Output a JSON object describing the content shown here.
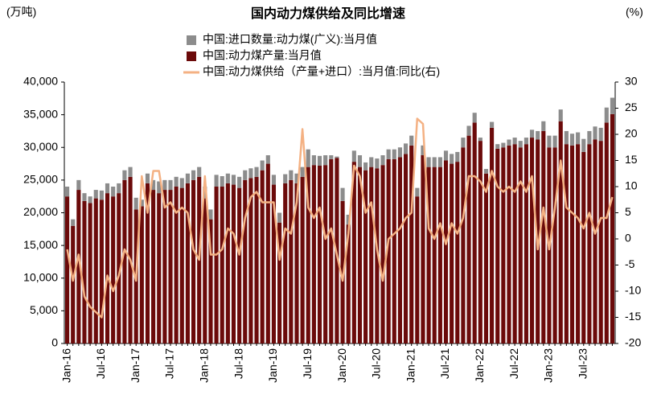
{
  "chart_data": {
    "type": "bar_line",
    "title": "国内动力煤供给及同比增速",
    "y_label": "(万吨)",
    "y2_label": "(%)",
    "categories": [
      "Jan-16",
      null,
      null,
      null,
      null,
      null,
      "Jul-16",
      null,
      null,
      null,
      null,
      null,
      "Jan-17",
      null,
      null,
      null,
      null,
      null,
      "Jul-17",
      null,
      null,
      null,
      null,
      null,
      "Jan-18",
      null,
      null,
      null,
      null,
      null,
      "Jul-18",
      null,
      null,
      null,
      null,
      null,
      "Jan-19",
      null,
      null,
      null,
      null,
      null,
      "Jul-19",
      null,
      null,
      null,
      null,
      null,
      "Jan-20",
      null,
      null,
      null,
      null,
      null,
      "Jul-20",
      null,
      null,
      null,
      null,
      null,
      "Jan-21",
      null,
      null,
      null,
      null,
      null,
      "Jul-21",
      null,
      null,
      null,
      null,
      null,
      "Jan-22",
      null,
      null,
      null,
      null,
      null,
      "Jul-22",
      null,
      null,
      null,
      null,
      null,
      "Jan-23",
      null,
      null,
      null,
      null,
      null,
      "Jul-23",
      null,
      null,
      null,
      null,
      null
    ],
    "series": [
      {
        "name": "中国:进口数量:动力煤(广义):当月值",
        "color": "#8c8c8c",
        "values": [
          1500,
          1000,
          1500,
          1200,
          1000,
          1300,
          1400,
          1500,
          1500,
          1500,
          1500,
          1500,
          1800,
          1000,
          1500,
          1500,
          1800,
          1500,
          1500,
          1500,
          1500,
          1500,
          1500,
          1500,
          1800,
          1500,
          1800,
          1600,
          1500,
          1500,
          1700,
          1500,
          1500,
          1500,
          1500,
          1300,
          1500,
          1500,
          1400,
          1500,
          1500,
          1500,
          2700,
          1500,
          1500,
          1500,
          600,
          200,
          2000,
          1500,
          1700,
          1800,
          1200,
          1500,
          1500,
          1500,
          1500,
          1500,
          1500,
          1600,
          1500,
          1300,
          1500,
          1500,
          1500,
          1500,
          1500,
          1500,
          1500,
          1500,
          1500,
          1500,
          500,
          700,
          900,
          700,
          700,
          900,
          1000,
          1000,
          1000,
          1200,
          1300,
          1500,
          1800,
          1800,
          1800,
          2000,
          1800,
          1800,
          2000,
          2000,
          2000,
          2000,
          2300,
          2500
        ]
      },
      {
        "name": "中国:动力煤产量:当月值",
        "color": "#6b0a0a",
        "values": [
          22500,
          18000,
          23500,
          21800,
          21500,
          22200,
          22000,
          23000,
          22500,
          23000,
          25000,
          25500,
          20500,
          21000,
          24500,
          23500,
          23000,
          23500,
          23500,
          24000,
          23800,
          24500,
          25000,
          25500,
          22200,
          19000,
          24000,
          24000,
          24500,
          24300,
          23800,
          25000,
          25300,
          25500,
          26500,
          27500,
          24300,
          18500,
          24500,
          25000,
          24500,
          25500,
          27000,
          27300,
          27200,
          27300,
          28200,
          28400,
          21800,
          18200,
          27800,
          27000,
          26500,
          27000,
          26800,
          27300,
          28200,
          28200,
          28500,
          29000,
          30300,
          22500,
          28800,
          27000,
          27000,
          27000,
          28000,
          27500,
          27800,
          30000,
          31800,
          33800,
          31000,
          26000,
          33000,
          29800,
          30000,
          30300,
          30500,
          30000,
          30500,
          31500,
          31200,
          32500,
          30000,
          30000,
          34000,
          30500,
          30300,
          30500,
          29300,
          30500,
          31200,
          31000,
          33800,
          35100
        ]
      },
      {
        "name": "中国:动力煤供给（产量+进口）:当月值:同比(右)",
        "color": "#f4b183",
        "axis": "y2",
        "values": [
          -2,
          -8,
          -3,
          -11,
          -13,
          -14,
          -15,
          -7,
          -10,
          -7,
          -2,
          -4,
          -8,
          12,
          5,
          13,
          13,
          6,
          7,
          5,
          6,
          5,
          -2,
          -4,
          12,
          -3,
          -3,
          -2,
          2,
          1,
          -3,
          4,
          8,
          9,
          7,
          7,
          7,
          -4,
          2,
          1,
          7,
          21,
          6,
          4,
          6,
          0,
          2,
          -3,
          -8,
          1,
          14,
          12,
          5,
          7,
          -2,
          -8,
          0,
          1,
          2,
          4,
          5,
          23,
          22,
          2,
          0,
          3,
          -1,
          3,
          1,
          4,
          12,
          12,
          11,
          9,
          13,
          10,
          9,
          10,
          9,
          11,
          9,
          12,
          -2,
          6,
          -2,
          6,
          15,
          6,
          5,
          4,
          2,
          5,
          1,
          4,
          4,
          8
        ]
      }
    ],
    "ylim": [
      0,
      40000
    ],
    "yticks": [
      0,
      {
        "value": 5000,
        "label": "5,000"
      },
      {
        "value": 10000,
        "label": "10,000"
      },
      {
        "value": 15000,
        "label": "15,000"
      },
      {
        "value": 20000,
        "label": "20,000"
      },
      {
        "value": 25000,
        "label": "25,000"
      },
      {
        "value": 30000,
        "label": "30,000"
      },
      {
        "value": 35000,
        "label": "35,000"
      },
      {
        "value": 40000,
        "label": "40,000"
      }
    ],
    "y2lim": [
      -20,
      30
    ],
    "y2ticks": [
      -20,
      -15,
      -10,
      -5,
      0,
      5,
      10,
      15,
      20,
      25,
      30
    ],
    "legend": "top"
  }
}
